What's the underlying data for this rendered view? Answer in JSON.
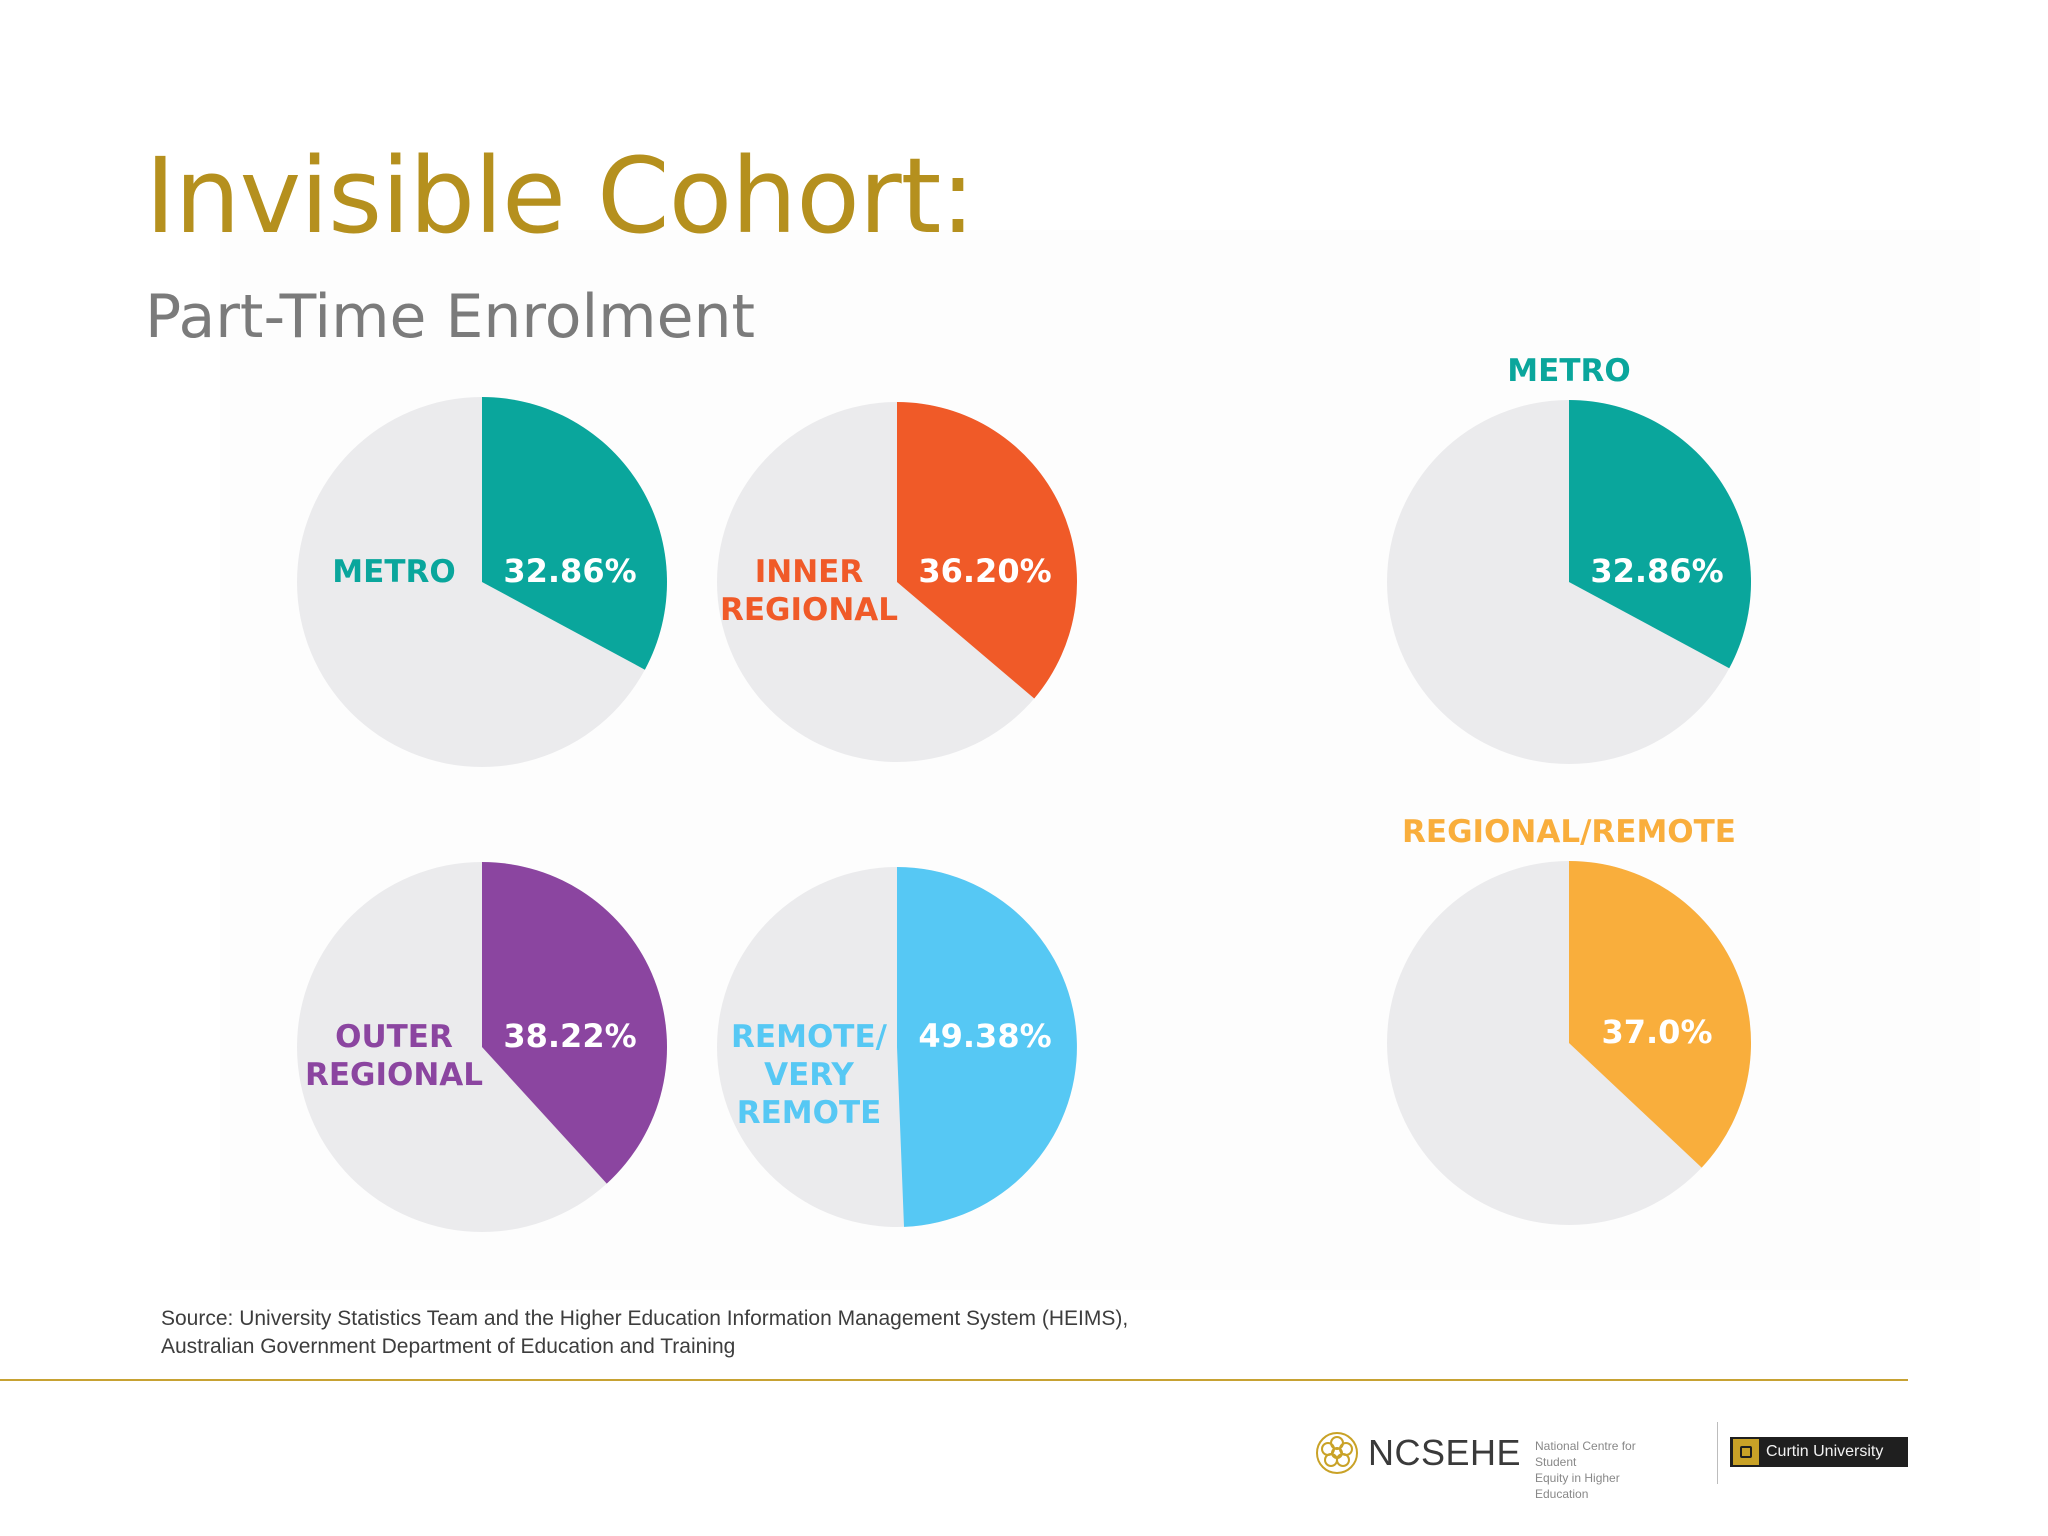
{
  "title": "Invisible Cohort:",
  "subtitle": "Part-Time Enrolment",
  "colors": {
    "title": "#b5901e",
    "subtitle": "#7b7b7b",
    "pie_background": "#ebebed",
    "divider": "#c7a233"
  },
  "chart_data": [
    {
      "type": "pie",
      "label_lines": [
        "METRO"
      ],
      "value_label": "32.86%",
      "value": 32.86,
      "color": "#0aa69c",
      "remainder_color": "#ebebed"
    },
    {
      "type": "pie",
      "label_lines": [
        "INNER",
        "REGIONAL"
      ],
      "value_label": "36.20%",
      "value": 36.2,
      "color": "#f05a28",
      "remainder_color": "#ebebed"
    },
    {
      "type": "pie",
      "label_lines": [
        "OUTER",
        "REGIONAL"
      ],
      "value_label": "38.22%",
      "value": 38.22,
      "color": "#8b45a0",
      "remainder_color": "#ebebed"
    },
    {
      "type": "pie",
      "label_lines": [
        "REMOTE/",
        "VERY",
        "REMOTE"
      ],
      "value_label": "49.38%",
      "value": 49.38,
      "color": "#56c8f4",
      "remainder_color": "#ebebed"
    },
    {
      "type": "pie",
      "title": "METRO",
      "value_label": "32.86%",
      "value": 32.86,
      "color": "#0aa69c",
      "remainder_color": "#ebebed"
    },
    {
      "type": "pie",
      "title": "REGIONAL/REMOTE",
      "value_label": "37.0%",
      "value": 37.0,
      "color": "#f9ae3c",
      "remainder_color": "#ebebed"
    }
  ],
  "source_line1": "Source: University Statistics Team and the Higher Education Information Management System (HEIMS),",
  "source_line2": "Australian Government Department of Education and Training",
  "footer": {
    "org_name": "NCSEHE",
    "org_desc_line1": "National Centre for Student",
    "org_desc_line2": "Equity in Higher Education",
    "partner": "Curtin University"
  }
}
